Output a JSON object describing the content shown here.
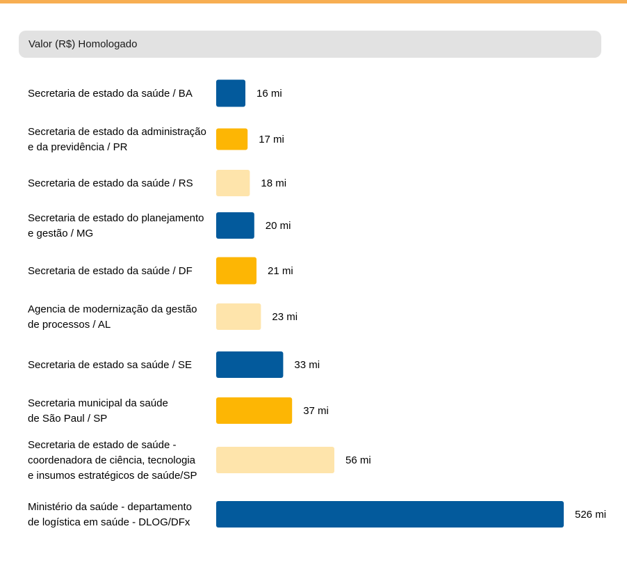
{
  "header": {
    "title": "Valor (R$) Homologado"
  },
  "colors": {
    "top_rule": "#f7ae52",
    "header_bg": "#e2e2e2",
    "blue": "#035a9c",
    "amber": "#fdb604",
    "cream": "#fee4ab"
  },
  "chart_data": {
    "type": "bar",
    "orientation": "horizontal",
    "title": "Valor (R$) Homologado",
    "value_unit": "mi",
    "categories": [
      "Secretaria de estado da saúde / BA",
      "Secretaria de estado da administração\ne da previdência / PR",
      "Secretaria de estado da saúde / RS",
      "Secretaria de estado do planejamento\ne gestão / MG",
      "Secretaria de estado da saúde / DF",
      "Agencia de modernização da gestão\nde processos / AL",
      "Secretaria de estado sa saúde / SE",
      "Secretaria municipal da saúde\nde São Paul / SP",
      "Secretaria de estado de saúde -\ncoordenadora de ciência, tecnologia\ne insumos estratégicos de saúde/SP",
      "Ministério da saúde - departamento\nde logística em saúde - DLOG/DFx"
    ],
    "values": [
      16,
      17,
      18,
      20,
      21,
      23,
      33,
      37,
      56,
      526
    ],
    "value_labels": [
      "16 mi",
      "17 mi",
      "18 mi",
      "20 mi",
      "21 mi",
      "23 mi",
      "33 mi",
      "37 mi",
      "56 mi",
      "526 mi"
    ],
    "bar_colors": [
      "blue",
      "amber",
      "cream",
      "blue",
      "amber",
      "cream",
      "blue",
      "amber",
      "cream",
      "blue"
    ],
    "legend": "none",
    "grid": false
  }
}
